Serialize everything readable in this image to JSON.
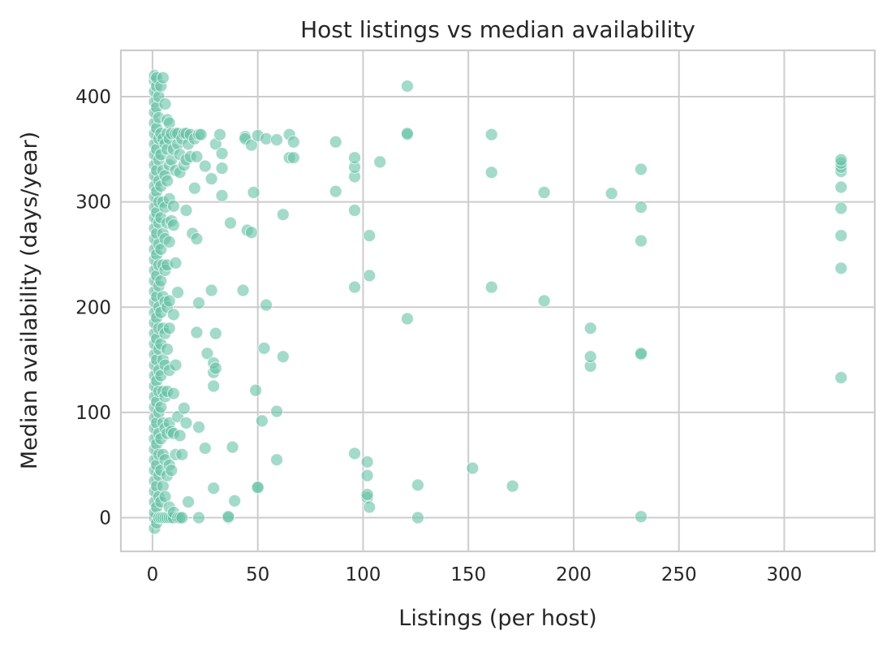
{
  "colors": {
    "point_fill": "#66c2a5",
    "point_stroke": "#ffffff",
    "grid": "#cccccc",
    "frame": "#cccccc",
    "text": "#262626",
    "background": "#ffffff"
  },
  "chart_data": {
    "type": "scatter",
    "title": "Host listings vs median availability",
    "xlabel": "Listings (per host)",
    "ylabel": "Median availability (days/year)",
    "xlim": [
      -15,
      343
    ],
    "ylim": [
      -32,
      444
    ],
    "xticks": [
      0,
      50,
      100,
      150,
      200,
      250,
      300
    ],
    "yticks": [
      0,
      100,
      200,
      300,
      400
    ],
    "xtick_labels": [
      "0",
      "50",
      "100",
      "150",
      "200",
      "250",
      "300"
    ],
    "ytick_labels": [
      "0",
      "100",
      "200",
      "300",
      "400"
    ],
    "grid": true,
    "legend": "none",
    "point_alpha": 0.6,
    "points": [
      [
        1,
        -10
      ],
      [
        1,
        0
      ],
      [
        1,
        5
      ],
      [
        1,
        15
      ],
      [
        1,
        25
      ],
      [
        1,
        35
      ],
      [
        1,
        45
      ],
      [
        1,
        55
      ],
      [
        1,
        65
      ],
      [
        1,
        75
      ],
      [
        1,
        85
      ],
      [
        1,
        95
      ],
      [
        1,
        105
      ],
      [
        1,
        115
      ],
      [
        1,
        125
      ],
      [
        1,
        135
      ],
      [
        1,
        145
      ],
      [
        1,
        155
      ],
      [
        1,
        165
      ],
      [
        1,
        175
      ],
      [
        1,
        185
      ],
      [
        1,
        195
      ],
      [
        1,
        205
      ],
      [
        1,
        215
      ],
      [
        1,
        225
      ],
      [
        1,
        235
      ],
      [
        1,
        245
      ],
      [
        1,
        255
      ],
      [
        1,
        265
      ],
      [
        1,
        275
      ],
      [
        1,
        285
      ],
      [
        1,
        295
      ],
      [
        1,
        305
      ],
      [
        1,
        315
      ],
      [
        1,
        325
      ],
      [
        1,
        335
      ],
      [
        1,
        345
      ],
      [
        1,
        355
      ],
      [
        1,
        365
      ],
      [
        1,
        375
      ],
      [
        1,
        385
      ],
      [
        1,
        395
      ],
      [
        1,
        405
      ],
      [
        1,
        415
      ],
      [
        1,
        420
      ],
      [
        2,
        -5
      ],
      [
        2,
        10
      ],
      [
        2,
        30
      ],
      [
        2,
        50
      ],
      [
        2,
        70
      ],
      [
        2,
        90
      ],
      [
        2,
        110
      ],
      [
        2,
        130
      ],
      [
        2,
        150
      ],
      [
        2,
        170
      ],
      [
        2,
        190
      ],
      [
        2,
        210
      ],
      [
        2,
        230
      ],
      [
        2,
        250
      ],
      [
        2,
        270
      ],
      [
        2,
        290
      ],
      [
        2,
        310
      ],
      [
        2,
        330
      ],
      [
        2,
        350
      ],
      [
        2,
        370
      ],
      [
        2,
        390
      ],
      [
        2,
        410
      ],
      [
        2,
        418
      ],
      [
        3,
        0
      ],
      [
        3,
        20
      ],
      [
        3,
        40
      ],
      [
        3,
        60
      ],
      [
        3,
        80
      ],
      [
        3,
        100
      ],
      [
        3,
        120
      ],
      [
        3,
        140
      ],
      [
        3,
        160
      ],
      [
        3,
        180
      ],
      [
        3,
        200
      ],
      [
        3,
        220
      ],
      [
        3,
        240
      ],
      [
        3,
        260
      ],
      [
        3,
        280
      ],
      [
        3,
        300
      ],
      [
        3,
        320
      ],
      [
        3,
        340
      ],
      [
        3,
        360
      ],
      [
        3,
        380
      ],
      [
        3,
        400
      ],
      [
        4,
        0
      ],
      [
        4,
        15
      ],
      [
        4,
        45
      ],
      [
        4,
        75
      ],
      [
        4,
        105
      ],
      [
        4,
        135
      ],
      [
        4,
        165
      ],
      [
        4,
        195
      ],
      [
        4,
        225
      ],
      [
        4,
        255
      ],
      [
        4,
        285
      ],
      [
        4,
        315
      ],
      [
        4,
        345
      ],
      [
        4,
        365
      ],
      [
        4,
        410
      ],
      [
        5,
        0
      ],
      [
        5,
        30
      ],
      [
        5,
        60
      ],
      [
        5,
        90
      ],
      [
        5,
        120
      ],
      [
        5,
        150
      ],
      [
        5,
        180
      ],
      [
        5,
        210
      ],
      [
        5,
        240
      ],
      [
        5,
        270
      ],
      [
        5,
        300
      ],
      [
        5,
        330
      ],
      [
        5,
        360
      ],
      [
        5,
        418
      ],
      [
        6,
        0
      ],
      [
        6,
        20
      ],
      [
        6,
        55
      ],
      [
        6,
        85
      ],
      [
        6,
        115
      ],
      [
        6,
        145
      ],
      [
        6,
        175
      ],
      [
        6,
        205
      ],
      [
        6,
        235
      ],
      [
        6,
        265
      ],
      [
        6,
        295
      ],
      [
        6,
        325
      ],
      [
        6,
        355
      ],
      [
        6,
        393
      ],
      [
        7,
        0
      ],
      [
        7,
        40
      ],
      [
        7,
        80
      ],
      [
        7,
        120
      ],
      [
        7,
        160
      ],
      [
        7,
        200
      ],
      [
        7,
        240
      ],
      [
        7,
        280
      ],
      [
        7,
        320
      ],
      [
        7,
        350
      ],
      [
        7,
        365
      ],
      [
        7,
        378
      ],
      [
        8,
        0
      ],
      [
        8,
        10
      ],
      [
        8,
        50
      ],
      [
        8,
        90
      ],
      [
        8,
        140
      ],
      [
        8,
        180
      ],
      [
        8,
        206
      ],
      [
        8,
        262
      ],
      [
        8,
        303
      ],
      [
        8,
        335
      ],
      [
        8,
        360
      ],
      [
        8,
        375
      ],
      [
        9,
        0
      ],
      [
        9,
        45
      ],
      [
        9,
        82
      ],
      [
        9,
        282
      ],
      [
        9,
        340
      ],
      [
        9,
        365
      ],
      [
        10,
        0
      ],
      [
        10,
        5
      ],
      [
        10,
        80
      ],
      [
        10,
        118
      ],
      [
        10,
        193
      ],
      [
        10,
        278
      ],
      [
        10,
        296
      ],
      [
        10,
        350
      ],
      [
        11,
        60
      ],
      [
        11,
        145
      ],
      [
        11,
        242
      ],
      [
        11,
        330
      ],
      [
        11,
        365
      ],
      [
        12,
        0
      ],
      [
        12,
        96
      ],
      [
        12,
        214
      ],
      [
        12,
        355
      ],
      [
        12,
        365
      ],
      [
        13,
        0
      ],
      [
        13,
        78
      ],
      [
        13,
        328
      ],
      [
        13,
        345
      ],
      [
        14,
        0
      ],
      [
        14,
        60
      ],
      [
        14,
        360
      ],
      [
        15,
        104
      ],
      [
        15,
        335
      ],
      [
        15,
        365
      ],
      [
        16,
        90
      ],
      [
        16,
        292
      ],
      [
        16,
        340
      ],
      [
        16,
        365
      ],
      [
        17,
        15
      ],
      [
        17,
        355
      ],
      [
        18,
        343
      ],
      [
        18,
        364
      ],
      [
        19,
        270
      ],
      [
        20,
        313
      ],
      [
        20,
        360
      ],
      [
        21,
        176
      ],
      [
        21,
        265
      ],
      [
        21,
        343
      ],
      [
        22,
        0
      ],
      [
        22,
        86
      ],
      [
        22,
        204
      ],
      [
        22,
        364
      ],
      [
        23,
        364
      ],
      [
        25,
        66
      ],
      [
        25,
        334
      ],
      [
        26,
        156
      ],
      [
        28,
        216
      ],
      [
        28,
        322
      ],
      [
        29,
        28
      ],
      [
        29,
        125
      ],
      [
        29,
        138
      ],
      [
        29,
        147
      ],
      [
        30,
        142
      ],
      [
        30,
        175
      ],
      [
        30,
        355
      ],
      [
        32,
        364
      ],
      [
        33,
        306
      ],
      [
        33,
        346
      ],
      [
        33,
        332
      ],
      [
        36,
        0
      ],
      [
        36,
        1
      ],
      [
        37,
        280
      ],
      [
        38,
        67
      ],
      [
        39,
        16
      ],
      [
        43,
        216
      ],
      [
        44,
        362
      ],
      [
        44,
        360
      ],
      [
        45,
        273
      ],
      [
        47,
        271
      ],
      [
        47,
        354
      ],
      [
        48,
        309
      ],
      [
        49,
        121
      ],
      [
        50,
        28
      ],
      [
        50,
        29
      ],
      [
        50,
        363
      ],
      [
        52,
        92
      ],
      [
        53,
        161
      ],
      [
        54,
        202
      ],
      [
        54,
        360
      ],
      [
        59,
        55
      ],
      [
        59,
        101
      ],
      [
        59,
        359
      ],
      [
        62,
        153
      ],
      [
        62,
        288
      ],
      [
        65,
        342
      ],
      [
        65,
        364
      ],
      [
        67,
        342
      ],
      [
        67,
        357
      ],
      [
        87,
        310
      ],
      [
        87,
        357
      ],
      [
        96,
        61
      ],
      [
        96,
        219
      ],
      [
        96,
        292
      ],
      [
        96,
        324
      ],
      [
        96,
        333
      ],
      [
        96,
        342
      ],
      [
        102,
        19
      ],
      [
        102,
        22
      ],
      [
        102,
        40
      ],
      [
        102,
        53
      ],
      [
        103,
        10
      ],
      [
        103,
        268
      ],
      [
        103,
        230
      ],
      [
        108,
        338
      ],
      [
        121,
        189
      ],
      [
        121,
        364
      ],
      [
        121,
        365
      ],
      [
        121,
        410
      ],
      [
        126,
        0
      ],
      [
        126,
        31
      ],
      [
        152,
        47
      ],
      [
        161,
        219
      ],
      [
        161,
        328
      ],
      [
        161,
        364
      ],
      [
        171,
        30
      ],
      [
        186,
        206
      ],
      [
        186,
        309
      ],
      [
        208,
        144
      ],
      [
        208,
        153
      ],
      [
        208,
        180
      ],
      [
        218,
        308
      ],
      [
        232,
        1
      ],
      [
        232,
        155
      ],
      [
        232,
        156
      ],
      [
        232,
        263
      ],
      [
        232,
        295
      ],
      [
        232,
        331
      ],
      [
        327,
        133
      ],
      [
        327,
        237
      ],
      [
        327,
        268
      ],
      [
        327,
        294
      ],
      [
        327,
        314
      ],
      [
        327,
        329
      ],
      [
        327,
        333
      ],
      [
        327,
        337
      ],
      [
        327,
        340
      ]
    ]
  }
}
